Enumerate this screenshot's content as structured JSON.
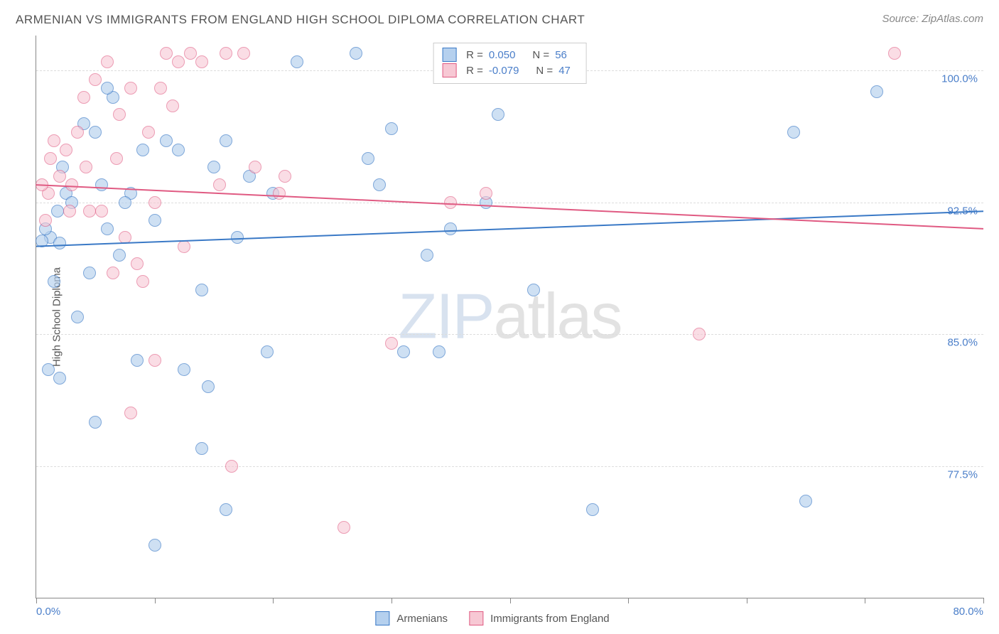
{
  "title": "ARMENIAN VS IMMIGRANTS FROM ENGLAND HIGH SCHOOL DIPLOMA CORRELATION CHART",
  "source": "Source: ZipAtlas.com",
  "y_axis_label": "High School Diploma",
  "watermark": {
    "zip": "ZIP",
    "atlas": "atlas"
  },
  "chart": {
    "type": "scatter",
    "background_color": "#ffffff",
    "grid_color": "#dddddd",
    "border_color": "#888888",
    "xlim": [
      0,
      80
    ],
    "ylim": [
      70,
      102
    ],
    "x_ticks": [
      0,
      10,
      20,
      30,
      40,
      50,
      60,
      70,
      80
    ],
    "x_tick_labels": {
      "0": "0.0%",
      "80": "80.0%"
    },
    "y_ticks": [
      77.5,
      85.0,
      92.5,
      100.0
    ],
    "y_tick_labels": [
      "77.5%",
      "85.0%",
      "92.5%",
      "100.0%"
    ],
    "point_radius": 9,
    "point_stroke_width": 1.5,
    "line_width": 2,
    "series": [
      {
        "key": "armenians",
        "label": "Armenians",
        "fill": "#b5d0ee",
        "stroke": "#3a79c6",
        "fill_opacity": 0.65,
        "R": "0.050",
        "N": "56",
        "trend": {
          "x1": 0,
          "y1": 90.0,
          "x2": 80,
          "y2": 92.0
        },
        "points": [
          [
            1.2,
            90.5
          ],
          [
            0.5,
            90.3
          ],
          [
            2.0,
            90.2
          ],
          [
            0.8,
            91.0
          ],
          [
            4.0,
            97.0
          ],
          [
            5.0,
            96.5
          ],
          [
            6.5,
            98.5
          ],
          [
            2.5,
            93.0
          ],
          [
            3.0,
            92.5
          ],
          [
            5.5,
            93.5
          ],
          [
            8.0,
            93.0
          ],
          [
            9.0,
            95.5
          ],
          [
            10.0,
            91.5
          ],
          [
            11.0,
            96.0
          ],
          [
            12.0,
            95.5
          ],
          [
            7.0,
            89.5
          ],
          [
            6.0,
            91.0
          ],
          [
            4.5,
            88.5
          ],
          [
            1.5,
            88.0
          ],
          [
            3.5,
            86.0
          ],
          [
            2.0,
            82.5
          ],
          [
            1.0,
            83.0
          ],
          [
            5.0,
            80.0
          ],
          [
            14.0,
            87.5
          ],
          [
            15.0,
            94.5
          ],
          [
            16.0,
            96.0
          ],
          [
            17.0,
            90.5
          ],
          [
            18.0,
            94.0
          ],
          [
            19.5,
            84.0
          ],
          [
            14.5,
            82.0
          ],
          [
            14.0,
            78.5
          ],
          [
            16.0,
            75.0
          ],
          [
            10.0,
            73.0
          ],
          [
            30.0,
            96.7
          ],
          [
            29.0,
            93.5
          ],
          [
            28.0,
            95.0
          ],
          [
            27.0,
            101.0
          ],
          [
            33.0,
            89.5
          ],
          [
            35.0,
            91.0
          ],
          [
            34.0,
            84.0
          ],
          [
            38.0,
            92.5
          ],
          [
            39.0,
            97.5
          ],
          [
            42.0,
            87.5
          ],
          [
            47.0,
            75.0
          ],
          [
            64.0,
            96.5
          ],
          [
            65.0,
            75.5
          ],
          [
            71.0,
            98.8
          ],
          [
            12.5,
            83.0
          ],
          [
            8.5,
            83.5
          ],
          [
            20.0,
            93.0
          ],
          [
            31.0,
            84.0
          ],
          [
            7.5,
            92.5
          ],
          [
            1.8,
            92.0
          ],
          [
            2.2,
            94.5
          ],
          [
            6.0,
            99.0
          ],
          [
            22.0,
            100.5
          ]
        ]
      },
      {
        "key": "england",
        "label": "Immigrants from England",
        "fill": "#f7c8d4",
        "stroke": "#e05a82",
        "fill_opacity": 0.6,
        "R": "-0.079",
        "N": "47",
        "trend": {
          "x1": 0,
          "y1": 93.5,
          "x2": 80,
          "y2": 91.0
        },
        "points": [
          [
            1.0,
            93.0
          ],
          [
            0.5,
            93.5
          ],
          [
            2.0,
            94.0
          ],
          [
            3.0,
            93.5
          ],
          [
            1.5,
            96.0
          ],
          [
            2.5,
            95.5
          ],
          [
            4.0,
            98.5
          ],
          [
            5.0,
            99.5
          ],
          [
            6.0,
            100.5
          ],
          [
            7.0,
            97.5
          ],
          [
            8.0,
            99.0
          ],
          [
            9.5,
            96.5
          ],
          [
            10.5,
            99.0
          ],
          [
            11.0,
            101.0
          ],
          [
            12.0,
            100.5
          ],
          [
            8.5,
            89.0
          ],
          [
            7.5,
            90.5
          ],
          [
            6.5,
            88.5
          ],
          [
            4.5,
            92.0
          ],
          [
            10.0,
            92.5
          ],
          [
            13.0,
            101.0
          ],
          [
            14.0,
            100.5
          ],
          [
            15.5,
            93.5
          ],
          [
            16.0,
            101.0
          ],
          [
            16.5,
            77.5
          ],
          [
            17.5,
            101.0
          ],
          [
            20.5,
            93.0
          ],
          [
            21.0,
            94.0
          ],
          [
            10.0,
            83.5
          ],
          [
            8.0,
            80.5
          ],
          [
            30.0,
            84.5
          ],
          [
            35.0,
            92.5
          ],
          [
            38.0,
            93.0
          ],
          [
            56.0,
            85.0
          ],
          [
            72.5,
            101.0
          ],
          [
            26.0,
            74.0
          ],
          [
            3.5,
            96.5
          ],
          [
            2.8,
            92.0
          ],
          [
            1.2,
            95.0
          ],
          [
            0.8,
            91.5
          ],
          [
            4.2,
            94.5
          ],
          [
            5.5,
            92.0
          ],
          [
            6.8,
            95.0
          ],
          [
            11.5,
            98.0
          ],
          [
            9.0,
            88.0
          ],
          [
            12.5,
            90.0
          ],
          [
            18.5,
            94.5
          ]
        ]
      }
    ],
    "legend_top": {
      "r_label": "R  =",
      "n_label": "N  ="
    }
  },
  "colors": {
    "text": "#555555",
    "tick": "#4a7ec9"
  }
}
